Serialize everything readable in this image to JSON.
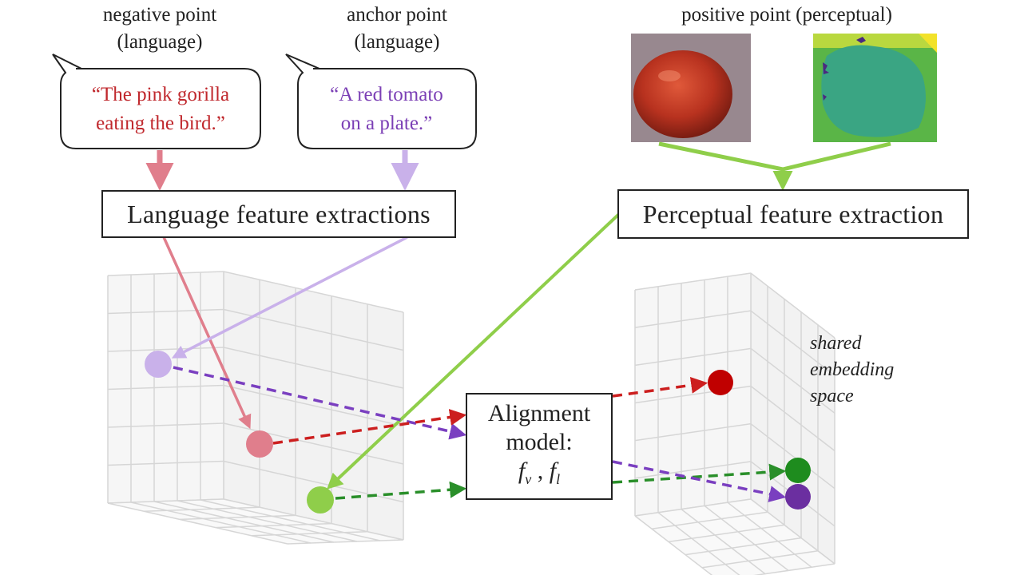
{
  "labels": {
    "negative": [
      "negative point",
      "(language)"
    ],
    "anchor": [
      "anchor point",
      "(language)"
    ],
    "positive": "positive point (perceptual)"
  },
  "quotes": {
    "negative": [
      "“The pink gorilla",
      "eating the bird.”"
    ],
    "anchor": [
      "“A red tomato",
      "on a plate.”"
    ]
  },
  "boxes": {
    "language": "Language feature extractions",
    "perceptual": "Perceptual feature extraction",
    "alignment": [
      "Alignment",
      "model:"
    ],
    "alignment_fn": {
      "v": "f",
      "v_sub": "v",
      "sep": " , ",
      "l": "f",
      "l_sub": "l"
    }
  },
  "shared_space": [
    "shared",
    "embedding",
    "space"
  ],
  "colors": {
    "negative": "#e07e8c",
    "negative_text": "#c0282d",
    "anchor": "#c9b1ea",
    "anchor_text": "#7b3fb5",
    "positive": "#8fce4a",
    "aligned_red": "#c00000",
    "aligned_green": "#1e8c1e",
    "aligned_purple": "#6b2fa0",
    "dash_purple": "#7a3fc0",
    "dash_red": "#cc1f1f",
    "dash_green": "#2a8f2a"
  },
  "images": [
    "tomato-photo",
    "segmentation-map"
  ]
}
